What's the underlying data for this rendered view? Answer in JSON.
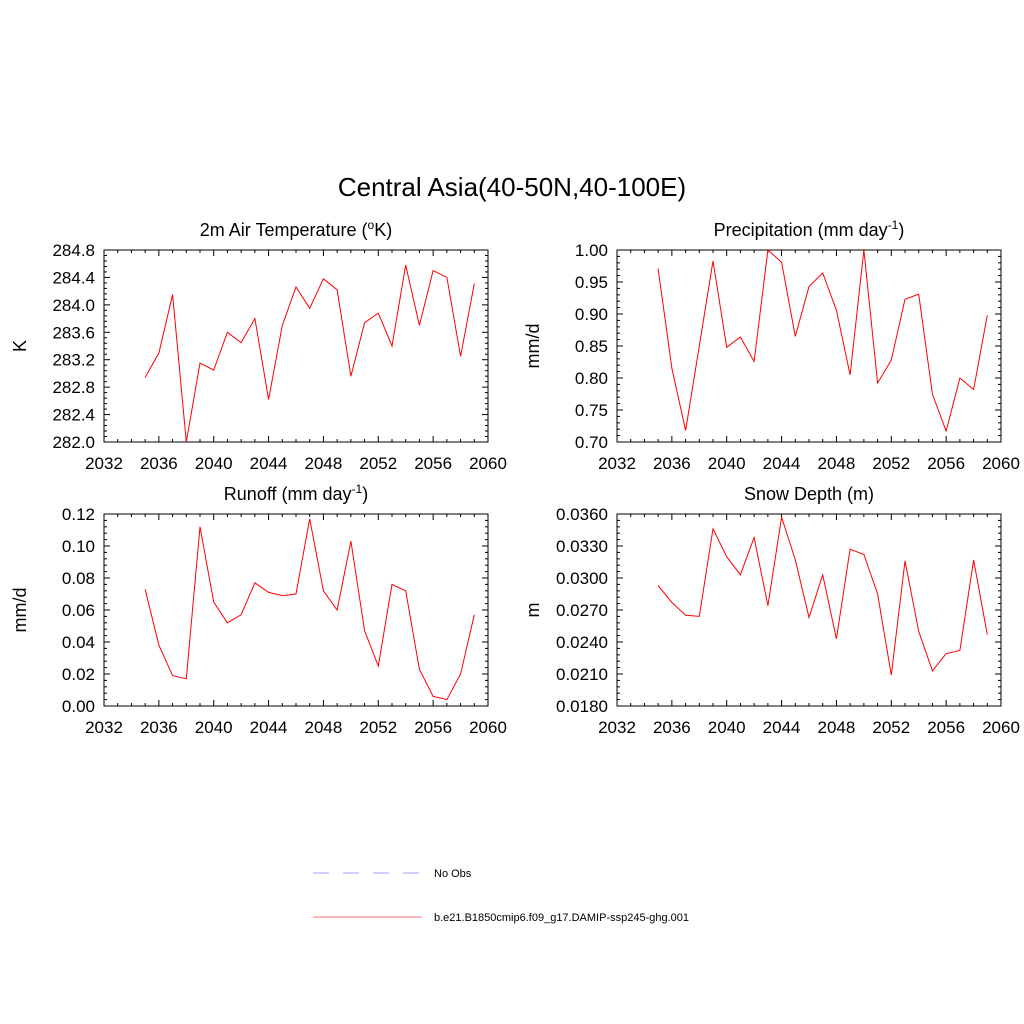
{
  "figure": {
    "title": "Central Asia(40-50N,40-100E)"
  },
  "chart_data": [
    {
      "type": "line",
      "title": "2m Air Temperature (",
      "title_sup": "o",
      "title_after": "K)",
      "ylabel": "K",
      "xlabel": "",
      "xlim": [
        2032,
        2060
      ],
      "ylim": [
        282.0,
        284.8
      ],
      "xticks": [
        "2032",
        "2036",
        "2040",
        "2044",
        "2048",
        "2052",
        "2056",
        "2060"
      ],
      "yticks": [
        "282.0",
        "282.4",
        "282.8",
        "283.2",
        "283.6",
        "284.0",
        "284.4",
        "284.8"
      ],
      "series": [
        {
          "color": "#ff0000",
          "x": [
            2035,
            2036,
            2037,
            2038,
            2039,
            2040,
            2041,
            2042,
            2043,
            2044,
            2045,
            2046,
            2047,
            2048,
            2049,
            2050,
            2051,
            2052,
            2053,
            2054,
            2055,
            2056,
            2057,
            2058,
            2059
          ],
          "y": [
            282.94,
            283.3,
            284.15,
            282.0,
            283.15,
            283.05,
            283.6,
            283.45,
            283.8,
            282.62,
            283.7,
            284.26,
            283.95,
            284.38,
            284.22,
            282.96,
            283.74,
            283.88,
            283.4,
            284.58,
            283.7,
            284.5,
            284.4,
            283.25,
            284.31
          ]
        }
      ]
    },
    {
      "type": "line",
      "title": "Precipitation (mm day",
      "title_sup": "-1",
      "title_after": ")",
      "ylabel": "mm/d",
      "xlabel": "",
      "xlim": [
        2032,
        2060
      ],
      "ylim": [
        0.7,
        1.0
      ],
      "xticks": [
        "2032",
        "2036",
        "2040",
        "2044",
        "2048",
        "2052",
        "2056",
        "2060"
      ],
      "yticks": [
        "0.70",
        "0.75",
        "0.80",
        "0.85",
        "0.90",
        "0.95",
        "1.00"
      ],
      "series": [
        {
          "color": "#ff0000",
          "x": [
            2035,
            2036,
            2037,
            2038,
            2039,
            2040,
            2041,
            2042,
            2043,
            2044,
            2045,
            2046,
            2047,
            2048,
            2049,
            2050,
            2051,
            2052,
            2053,
            2054,
            2055,
            2056,
            2057,
            2058,
            2059
          ],
          "y": [
            0.971,
            0.815,
            0.718,
            0.85,
            0.983,
            0.848,
            0.864,
            0.826,
            1.0,
            0.981,
            0.865,
            0.943,
            0.964,
            0.906,
            0.805,
            1.0,
            0.792,
            0.828,
            0.923,
            0.931,
            0.775,
            0.717,
            0.8,
            0.782,
            0.898
          ]
        }
      ]
    },
    {
      "type": "line",
      "title": "Runoff (mm day",
      "title_sup": "-1",
      "title_after": ")",
      "ylabel": "mm/d",
      "xlabel": "",
      "xlim": [
        2032,
        2060
      ],
      "ylim": [
        0.0,
        0.12
      ],
      "xticks": [
        "2032",
        "2036",
        "2040",
        "2044",
        "2048",
        "2052",
        "2056",
        "2060"
      ],
      "yticks": [
        "0.00",
        "0.02",
        "0.04",
        "0.06",
        "0.08",
        "0.10",
        "0.12"
      ],
      "series": [
        {
          "color": "#ff0000",
          "x": [
            2035,
            2036,
            2037,
            2038,
            2039,
            2040,
            2041,
            2042,
            2043,
            2044,
            2045,
            2046,
            2047,
            2048,
            2049,
            2050,
            2051,
            2052,
            2053,
            2054,
            2055,
            2056,
            2057,
            2058,
            2059
          ],
          "y": [
            0.073,
            0.038,
            0.019,
            0.017,
            0.112,
            0.065,
            0.052,
            0.057,
            0.077,
            0.071,
            0.069,
            0.07,
            0.117,
            0.072,
            0.06,
            0.103,
            0.047,
            0.025,
            0.076,
            0.072,
            0.023,
            0.006,
            0.004,
            0.02,
            0.057
          ]
        }
      ]
    },
    {
      "type": "line",
      "title": "Snow Depth (m)",
      "title_sup": "",
      "title_after": "",
      "ylabel": "m",
      "xlabel": "",
      "xlim": [
        2032,
        2060
      ],
      "ylim": [
        0.018,
        0.036
      ],
      "xticks": [
        "2032",
        "2036",
        "2040",
        "2044",
        "2048",
        "2052",
        "2056",
        "2060"
      ],
      "yticks": [
        "0.0180",
        "0.0210",
        "0.0240",
        "0.0270",
        "0.0300",
        "0.0330",
        "0.0360"
      ],
      "series": [
        {
          "color": "#ff0000",
          "x": [
            2035,
            2036,
            2037,
            2038,
            2039,
            2040,
            2041,
            2042,
            2043,
            2044,
            2045,
            2046,
            2047,
            2048,
            2049,
            2050,
            2051,
            2052,
            2053,
            2054,
            2055,
            2056,
            2057,
            2058,
            2059
          ],
          "y": [
            0.0293,
            0.0277,
            0.0265,
            0.0264,
            0.0346,
            0.032,
            0.0303,
            0.0338,
            0.0274,
            0.0357,
            0.0317,
            0.0263,
            0.0303,
            0.0243,
            0.0327,
            0.0322,
            0.0285,
            0.0209,
            0.0316,
            0.025,
            0.0213,
            0.0229,
            0.0232,
            0.0317,
            0.0247
          ]
        }
      ]
    }
  ],
  "legend": {
    "items": [
      {
        "label": "No Obs",
        "color": "#a0a0ff",
        "style": "dashed"
      },
      {
        "label": "b.e21.B1850cmip6.f09_g17.DAMIP-ssp245-ghg.001",
        "color": "#ff7070",
        "style": "solid"
      }
    ]
  }
}
